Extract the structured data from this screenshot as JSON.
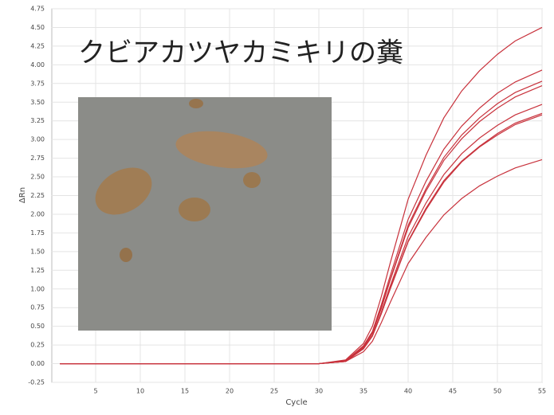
{
  "chart_data": {
    "type": "line",
    "title": "クビアカツヤカミキリの糞",
    "xlabel": "Cycle",
    "ylabel": "ΔRn",
    "x": [
      1,
      10,
      20,
      30,
      33,
      35,
      36,
      37,
      38,
      40,
      42,
      44,
      46,
      48,
      50,
      52,
      55
    ],
    "series": [
      {
        "color": "#c8323c",
        "values": [
          0,
          0,
          0,
          0,
          0.05,
          0.27,
          0.5,
          0.9,
          1.35,
          2.2,
          2.79,
          3.29,
          3.65,
          3.92,
          4.14,
          4.32,
          4.5
        ]
      },
      {
        "color": "#c8323c",
        "values": [
          0,
          0,
          0,
          0,
          0.04,
          0.24,
          0.43,
          0.79,
          1.18,
          1.93,
          2.44,
          2.87,
          3.18,
          3.42,
          3.62,
          3.77,
          3.93
        ]
      },
      {
        "color": "#c8323c",
        "values": [
          0,
          0,
          0,
          0,
          0.04,
          0.23,
          0.42,
          0.76,
          1.13,
          1.85,
          2.34,
          2.76,
          3.06,
          3.29,
          3.48,
          3.63,
          3.78
        ]
      },
      {
        "color": "#c8323c",
        "values": [
          0,
          0,
          0,
          0,
          0.04,
          0.22,
          0.41,
          0.74,
          1.12,
          1.82,
          2.31,
          2.72,
          3.01,
          3.24,
          3.42,
          3.57,
          3.72
        ]
      },
      {
        "color": "#c8323c",
        "values": [
          0,
          0,
          0,
          0,
          0.03,
          0.21,
          0.38,
          0.69,
          1.04,
          1.7,
          2.15,
          2.53,
          2.81,
          3.02,
          3.19,
          3.33,
          3.47
        ]
      },
      {
        "color": "#c8323c",
        "values": [
          0,
          0,
          0,
          0,
          0.03,
          0.2,
          0.37,
          0.67,
          1.01,
          1.64,
          2.08,
          2.45,
          2.71,
          2.91,
          3.08,
          3.22,
          3.35
        ]
      },
      {
        "color": "#c8323c",
        "values": [
          0,
          0,
          0,
          0,
          0.03,
          0.2,
          0.37,
          0.67,
          1.0,
          1.63,
          2.06,
          2.43,
          2.7,
          2.9,
          3.06,
          3.2,
          3.33
        ]
      },
      {
        "color": "#c8323c",
        "values": [
          0,
          0,
          0,
          0,
          0.03,
          0.16,
          0.3,
          0.55,
          0.82,
          1.34,
          1.69,
          1.99,
          2.21,
          2.38,
          2.51,
          2.62,
          2.73
        ]
      }
    ],
    "xlim": [
      0,
      55
    ],
    "xticks": [
      5,
      10,
      15,
      20,
      25,
      30,
      35,
      40,
      45,
      50,
      55
    ],
    "ylim": [
      -0.25,
      4.75
    ],
    "yticks": [
      {
        "value": -0.25,
        "label": "-0.25"
      },
      {
        "value": 0,
        "label": "0.00"
      },
      {
        "value": 0.25,
        "label": "0.25"
      },
      {
        "value": 0.5,
        "label": "0.50"
      },
      {
        "value": 0.75,
        "label": "0.75"
      },
      {
        "value": 1,
        "label": "1.00"
      },
      {
        "value": 1.25,
        "label": "1.25"
      },
      {
        "value": 1.5,
        "label": "1.50"
      },
      {
        "value": 1.75,
        "label": "1.75"
      },
      {
        "value": 2,
        "label": "2.00"
      },
      {
        "value": 2.25,
        "label": "2.25"
      },
      {
        "value": 2.5,
        "label": "2.50"
      },
      {
        "value": 2.75,
        "label": "2.75"
      },
      {
        "value": 3,
        "label": "3.00"
      },
      {
        "value": 3.25,
        "label": "3.25"
      },
      {
        "value": 3.5,
        "label": "3.50"
      },
      {
        "value": 3.75,
        "label": "3.75"
      },
      {
        "value": 4,
        "label": "4.00"
      },
      {
        "value": 4.25,
        "label": "4.25"
      },
      {
        "value": 4.5,
        "label": "4.50"
      },
      {
        "value": 4.75,
        "label": "4.75"
      }
    ],
    "grid": true
  }
}
